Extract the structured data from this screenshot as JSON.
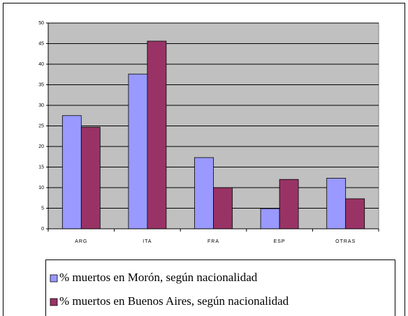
{
  "chart_data": {
    "type": "bar",
    "categories": [
      "ARG",
      "ITA",
      "FRA",
      "ESP",
      "OTRAS"
    ],
    "series": [
      {
        "name": "% muertos en Morón, según nacionalidad",
        "color": "#9999ff",
        "values": [
          27.5,
          37.6,
          17.3,
          4.9,
          12.3
        ]
      },
      {
        "name": "% muertos en Buenos Aires, según nacionalidad",
        "color": "#993366",
        "values": [
          24.7,
          45.6,
          10,
          12,
          7.3
        ]
      }
    ],
    "ylim": [
      0,
      50
    ],
    "yticks": [
      0,
      5,
      10,
      15,
      20,
      25,
      30,
      35,
      40,
      45,
      50
    ],
    "grid": true
  }
}
